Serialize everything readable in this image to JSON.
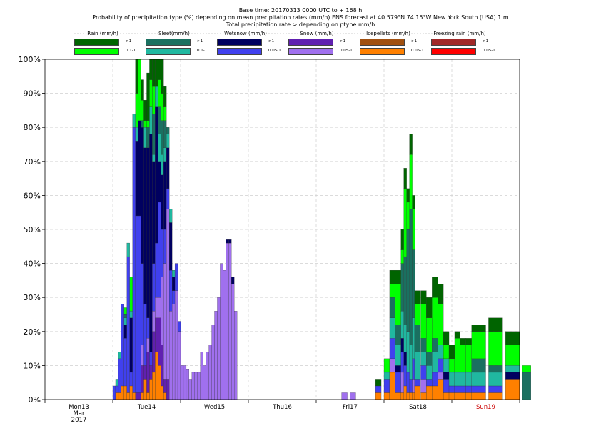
{
  "header": {
    "line1": "Base time: 20170313 0000 UTC to + 168 h",
    "line2": "Probability of precipitation type (%) depending on mean precipitation rates (mm/h) ENS forecast at 40.579°N  74.15°W New York South (USA) 1 m",
    "line3": "Total precipitation rate > depending on ptype mm/h"
  },
  "legend": [
    {
      "name": "Rain (mm/h)",
      "hi_label": ">1",
      "lo_label": "0.1-1",
      "hi_color": "#006400",
      "lo_color": "#00ff00"
    },
    {
      "name": "Sleet(mm/h)",
      "hi_label": ">1",
      "lo_label": "0.1-1",
      "hi_color": "#1a7060",
      "lo_color": "#20b8a0"
    },
    {
      "name": "Wetsnow (mm/h)",
      "hi_label": ">1",
      "lo_label": "0.05-1",
      "hi_color": "#000060",
      "lo_color": "#4040ee"
    },
    {
      "name": "Snow (mm/h)",
      "hi_label": ">1",
      "lo_label": "0.05-1",
      "hi_color": "#6020b0",
      "lo_color": "#a070ee"
    },
    {
      "name": "Icepellets (mm/h)",
      "hi_label": ">1",
      "lo_label": "0.05-1",
      "hi_color": "#a05010",
      "lo_color": "#ff8000"
    },
    {
      "name": "Freezing rain (mm/h)",
      "hi_label": ">1",
      "lo_label": "0.05-1",
      "hi_color": "#a02828",
      "lo_color": "#ff0000"
    }
  ],
  "chart_data": {
    "type": "bar",
    "stacked": true,
    "ylim": [
      0,
      100
    ],
    "yticks": [
      "0%",
      "10%",
      "20%",
      "30%",
      "40%",
      "50%",
      "60%",
      "70%",
      "80%",
      "90%",
      "100%"
    ],
    "xlim_hours": [
      0,
      168
    ],
    "x_labels": [
      {
        "lines": [
          "Mon13",
          "Mar",
          "2017"
        ],
        "color": "#000000"
      },
      {
        "lines": [
          "Tue14"
        ],
        "color": "#000000"
      },
      {
        "lines": [
          "Wed15"
        ],
        "color": "#000000"
      },
      {
        "lines": [
          "Thu16"
        ],
        "color": "#000000"
      },
      {
        "lines": [
          "Fri17"
        ],
        "color": "#000000"
      },
      {
        "lines": [
          "Sat18"
        ],
        "color": "#000000"
      },
      {
        "lines": [
          "Sun19"
        ],
        "color": "#cc0000"
      }
    ],
    "series_order": [
      "icepellets_lo",
      "snow_hi",
      "snow_lo",
      "wetsnow_lo",
      "wetsnow_hi",
      "sleet_lo",
      "sleet_hi",
      "rain_lo",
      "rain_hi"
    ],
    "colors": {
      "icepellets_lo": "#ff8000",
      "snow_hi": "#6020b0",
      "snow_lo": "#a070ee",
      "wetsnow_lo": "#4040ee",
      "wetsnow_hi": "#000060",
      "sleet_lo": "#20b8a0",
      "sleet_hi": "#1a7060",
      "rain_lo": "#00ff00",
      "rain_hi": "#006400"
    },
    "bars": [
      {
        "t": 24,
        "w": 1,
        "v": {
          "wetsnow_lo": 4
        }
      },
      {
        "t": 25,
        "w": 1,
        "v": {
          "icepellets_lo": 2,
          "wetsnow_lo": 2,
          "sleet_lo": 2
        }
      },
      {
        "t": 26,
        "w": 1,
        "v": {
          "icepellets_lo": 2,
          "wetsnow_lo": 10,
          "sleet_lo": 2
        }
      },
      {
        "t": 27,
        "w": 1,
        "v": {
          "icepellets_lo": 4,
          "wetsnow_lo": 24
        }
      },
      {
        "t": 28,
        "w": 1,
        "v": {
          "icepellets_lo": 4,
          "wetsnow_lo": 14,
          "wetsnow_hi": 4,
          "sleet_lo": 2,
          "sleet_hi": 1,
          "rain_lo": 2
        }
      },
      {
        "t": 29,
        "w": 1,
        "v": {
          "icepellets_lo": 2,
          "wetsnow_lo": 40,
          "sleet_lo": 4
        }
      },
      {
        "t": 30,
        "w": 1,
        "v": {
          "icepellets_lo": 4,
          "wetsnow_lo": 4,
          "wetsnow_hi": 16,
          "sleet_lo": 2,
          "rain_lo": 10
        }
      },
      {
        "t": 31,
        "w": 1,
        "v": {
          "icepellets_lo": 2,
          "wetsnow_lo": 78,
          "sleet_lo": 4
        }
      },
      {
        "t": 32,
        "w": 1,
        "v": {
          "snow_hi": 2,
          "wetsnow_lo": 52,
          "wetsnow_hi": 22,
          "sleet_lo": 4,
          "rain_lo": 10,
          "rain_hi": 10
        }
      },
      {
        "t": 33,
        "w": 1,
        "v": {
          "snow_hi": 2,
          "wetsnow_lo": 52,
          "wetsnow_hi": 28,
          "rain_lo": 18
        }
      },
      {
        "t": 34,
        "w": 1,
        "v": {
          "icepellets_lo": 2,
          "snow_hi": 8,
          "snow_lo": 6,
          "wetsnow_lo": 24,
          "wetsnow_hi": 40,
          "sleet_hi": 2,
          "rain_lo": 6,
          "rain_hi": 6
        }
      },
      {
        "t": 35,
        "w": 1,
        "v": {
          "icepellets_lo": 6,
          "snow_hi": 4,
          "wetsnow_lo": 18,
          "wetsnow_hi": 46,
          "sleet_lo": 6,
          "rain_hi": 6,
          "rain_lo": 2
        }
      },
      {
        "t": 36,
        "w": 1,
        "v": {
          "icepellets_lo": 2,
          "snow_hi": 12,
          "snow_lo": 4,
          "wetsnow_lo": 6,
          "wetsnow_hi": 50,
          "sleet_hi": 6,
          "rain_lo": 2,
          "rain_hi": 14
        }
      },
      {
        "t": 37,
        "w": 1,
        "v": {
          "icepellets_lo": 6,
          "snow_hi": 4,
          "wetsnow_lo": 4,
          "wetsnow_hi": 64,
          "sleet_lo": 8,
          "rain_lo": 8,
          "rain_hi": 6
        }
      },
      {
        "t": 38,
        "w": 1,
        "v": {
          "icepellets_lo": 8,
          "snow_hi": 12,
          "snow_lo": 6,
          "wetsnow_lo": 14,
          "wetsnow_hi": 30,
          "sleet_lo": 2,
          "sleet_hi": 12,
          "rain_lo": 8,
          "rain_hi": 8
        }
      },
      {
        "t": 39,
        "w": 1,
        "v": {
          "icepellets_lo": 14,
          "snow_hi": 10,
          "snow_lo": 6,
          "wetsnow_lo": 16,
          "wetsnow_hi": 40,
          "sleet_lo": 6,
          "rain_hi": 8
        }
      },
      {
        "t": 40,
        "w": 1,
        "v": {
          "icepellets_lo": 10,
          "snow_hi": 14,
          "snow_lo": 6,
          "wetsnow_lo": 28,
          "wetsnow_hi": 12,
          "sleet_lo": 8,
          "sleet_hi": 8,
          "rain_lo": 8,
          "rain_hi": 6
        }
      },
      {
        "t": 41,
        "w": 1,
        "v": {
          "icepellets_lo": 4,
          "snow_hi": 12,
          "snow_lo": 20,
          "wetsnow_lo": 14,
          "wetsnow_hi": 16,
          "sleet_lo": 6,
          "sleet_hi": 10,
          "rain_lo": 8,
          "rain_hi": 10
        }
      },
      {
        "t": 42,
        "w": 1,
        "v": {
          "icepellets_lo": 2,
          "snow_hi": 4,
          "snow_lo": 34,
          "wetsnow_lo": 10,
          "wetsnow_hi": 20,
          "sleet_lo": 4,
          "sleet_hi": 8,
          "rain_lo": 4,
          "rain_hi": 6
        }
      },
      {
        "t": 43,
        "w": 1,
        "v": {
          "snow_hi": 6,
          "snow_lo": 50,
          "wetsnow_lo": 6,
          "wetsnow_hi": 12,
          "sleet_lo": 4,
          "sleet_hi": 2
        }
      },
      {
        "t": 44,
        "w": 1,
        "v": {
          "snow_lo": 26,
          "wetsnow_lo": 12,
          "wetsnow_hi": 14,
          "sleet_lo": 4
        }
      },
      {
        "t": 45,
        "w": 1,
        "v": {
          "snow_lo": 28,
          "wetsnow_lo": 4,
          "wetsnow_hi": 4,
          "sleet_lo": 2
        }
      },
      {
        "t": 46,
        "w": 1,
        "v": {
          "snow_lo": 32,
          "wetsnow_lo": 8
        }
      },
      {
        "t": 47,
        "w": 1,
        "v": {
          "snow_lo": 20,
          "wetsnow_lo": 3
        }
      },
      {
        "t": 48,
        "w": 1,
        "v": {
          "snow_lo": 10
        }
      },
      {
        "t": 49,
        "w": 1,
        "v": {
          "snow_lo": 10
        }
      },
      {
        "t": 50,
        "w": 1,
        "v": {
          "snow_lo": 9
        }
      },
      {
        "t": 51,
        "w": 1,
        "v": {
          "snow_lo": 6
        }
      },
      {
        "t": 52,
        "w": 1,
        "v": {
          "snow_lo": 8
        }
      },
      {
        "t": 53,
        "w": 1,
        "v": {
          "snow_lo": 8
        }
      },
      {
        "t": 54,
        "w": 1,
        "v": {
          "snow_lo": 8
        }
      },
      {
        "t": 55,
        "w": 1,
        "v": {
          "snow_lo": 14
        }
      },
      {
        "t": 56,
        "w": 1,
        "v": {
          "snow_lo": 10
        }
      },
      {
        "t": 57,
        "w": 1,
        "v": {
          "snow_lo": 14
        }
      },
      {
        "t": 58,
        "w": 1,
        "v": {
          "snow_lo": 16
        }
      },
      {
        "t": 59,
        "w": 1,
        "v": {
          "snow_lo": 22
        }
      },
      {
        "t": 60,
        "w": 1,
        "v": {
          "snow_lo": 26
        }
      },
      {
        "t": 61,
        "w": 1,
        "v": {
          "snow_lo": 30
        }
      },
      {
        "t": 62,
        "w": 1,
        "v": {
          "snow_lo": 40
        }
      },
      {
        "t": 63,
        "w": 1,
        "v": {
          "snow_lo": 38
        }
      },
      {
        "t": 64,
        "w": 1,
        "v": {
          "snow_lo": 46,
          "wetsnow_hi": 1
        }
      },
      {
        "t": 65,
        "w": 1,
        "v": {
          "snow_lo": 46,
          "wetsnow_hi": 1
        }
      },
      {
        "t": 66,
        "w": 1,
        "v": {
          "snow_lo": 34,
          "wetsnow_hi": 2
        }
      },
      {
        "t": 67,
        "w": 1,
        "v": {
          "snow_lo": 26
        }
      },
      {
        "t": 105,
        "w": 2,
        "v": {
          "snow_lo": 2
        }
      },
      {
        "t": 108,
        "w": 2,
        "v": {
          "snow_lo": 2
        }
      },
      {
        "t": 117,
        "w": 2,
        "v": {
          "icepellets_lo": 2,
          "wetsnow_lo": 2,
          "rain_hi": 2
        }
      },
      {
        "t": 120,
        "w": 2,
        "v": {
          "icepellets_lo": 2,
          "wetsnow_lo": 4,
          "sleet_lo": 2,
          "rain_lo": 4
        }
      },
      {
        "t": 122,
        "w": 2,
        "v": {
          "icepellets_lo": 8,
          "snow_lo": 4,
          "wetsnow_lo": 6,
          "sleet_lo": 6,
          "sleet_hi": 6,
          "rain_hi": 4,
          "rain_lo": 4
        }
      },
      {
        "t": 124,
        "w": 2,
        "v": {
          "icepellets_lo": 2,
          "wetsnow_lo": 6,
          "wetsnow_hi": 2,
          "sleet_lo": 6,
          "sleet_hi": 6,
          "rain_hi": 4,
          "rain_lo": 12
        }
      },
      {
        "t": 126,
        "w": 1,
        "v": {
          "icepellets_lo": 2,
          "snow_lo": 6,
          "wetsnow_lo": 6,
          "wetsnow_hi": 4,
          "sleet_lo": 8,
          "sleet_hi": 14,
          "rain_hi": 6,
          "rain_lo": 4
        }
      },
      {
        "t": 127,
        "w": 1,
        "v": {
          "icepellets_lo": 4,
          "wetsnow_lo": 6,
          "wetsnow_hi": 4,
          "sleet_lo": 8,
          "sleet_hi": 20,
          "rain_hi": 6,
          "rain_lo": 20
        }
      },
      {
        "t": 128,
        "w": 1,
        "v": {
          "icepellets_lo": 2,
          "wetsnow_lo": 6,
          "sleet_lo": 12,
          "sleet_hi": 30,
          "rain_hi": 4,
          "rain_lo": 8
        }
      },
      {
        "t": 129,
        "w": 1,
        "v": {
          "icepellets_lo": 2,
          "wetsnow_lo": 4,
          "sleet_lo": 10,
          "sleet_hi": 40,
          "rain_hi": 6,
          "rain_lo": 16
        }
      },
      {
        "t": 130,
        "w": 1,
        "v": {
          "icepellets_lo": 2,
          "snow_lo": 4,
          "wetsnow_lo": 6,
          "sleet_lo": 12,
          "sleet_hi": 20,
          "rain_hi": 4,
          "rain_lo": 12
        }
      },
      {
        "t": 130.8,
        "w": 2,
        "v": {
          "icepellets_lo": 4,
          "wetsnow_lo": 2,
          "sleet_lo": 8,
          "sleet_hi": 8,
          "rain_hi": 4,
          "rain_lo": 6
        }
      },
      {
        "t": 133,
        "w": 2,
        "v": {
          "icepellets_lo": 2,
          "snow_lo": 4,
          "wetsnow_lo": 4,
          "sleet_lo": 4,
          "sleet_hi": 4,
          "rain_hi": 4,
          "rain_lo": 10
        }
      },
      {
        "t": 135,
        "w": 2,
        "v": {
          "icepellets_lo": 4,
          "wetsnow_lo": 2,
          "sleet_lo": 4,
          "sleet_hi": 4,
          "rain_hi": 6,
          "rain_lo": 10
        }
      },
      {
        "t": 137,
        "w": 2,
        "v": {
          "icepellets_lo": 4,
          "wetsnow_lo": 4,
          "sleet_lo": 6,
          "sleet_hi": 4,
          "rain_hi": 6,
          "rain_lo": 12
        }
      },
      {
        "t": 139,
        "w": 2,
        "v": {
          "icepellets_lo": 6,
          "snow_lo": 2,
          "wetsnow_lo": 4,
          "sleet_lo": 4,
          "rain_hi": 6,
          "rain_lo": 12
        }
      },
      {
        "t": 141,
        "w": 2,
        "v": {
          "icepellets_lo": 2,
          "wetsnow_lo": 4,
          "wetsnow_hi": 2,
          "sleet_lo": 4,
          "rain_hi": 4,
          "rain_lo": 4
        }
      },
      {
        "t": 143,
        "w": 2,
        "v": {
          "icepellets_lo": 2,
          "wetsnow_lo": 2,
          "sleet_lo": 4,
          "rain_hi": 4,
          "rain_lo": 4
        }
      },
      {
        "t": 145,
        "w": 2,
        "v": {
          "icepellets_lo": 2,
          "wetsnow_lo": 2,
          "sleet_lo": 4,
          "rain_hi": 2,
          "rain_lo": 10
        }
      },
      {
        "t": 147,
        "w": 2,
        "v": {
          "icepellets_lo": 2,
          "wetsnow_lo": 2,
          "sleet_lo": 4,
          "rain_hi": 2,
          "rain_lo": 8
        }
      },
      {
        "t": 149,
        "w": 2,
        "v": {
          "icepellets_lo": 2,
          "wetsnow_lo": 2,
          "sleet_lo": 4,
          "rain_hi": 2,
          "rain_lo": 8
        }
      },
      {
        "t": 151,
        "w": 5,
        "v": {
          "icepellets_lo": 2,
          "wetsnow_lo": 2,
          "sleet_lo": 4,
          "sleet_hi": 4,
          "rain_hi": 2,
          "rain_lo": 8
        }
      },
      {
        "t": 157,
        "w": 5,
        "v": {
          "icepellets_lo": 2,
          "wetsnow_lo": 2,
          "sleet_lo": 4,
          "sleet_hi": 2,
          "rain_hi": 4,
          "rain_lo": 10
        }
      },
      {
        "t": 163,
        "w": 5,
        "v": {
          "icepellets_lo": 6,
          "wetsnow_hi": 2,
          "sleet_lo": 2,
          "rain_hi": 4,
          "rain_lo": 6
        }
      },
      {
        "t": 169,
        "w": 3,
        "v": {
          "sleet_hi": 8,
          "rain_lo": 2
        }
      }
    ]
  }
}
